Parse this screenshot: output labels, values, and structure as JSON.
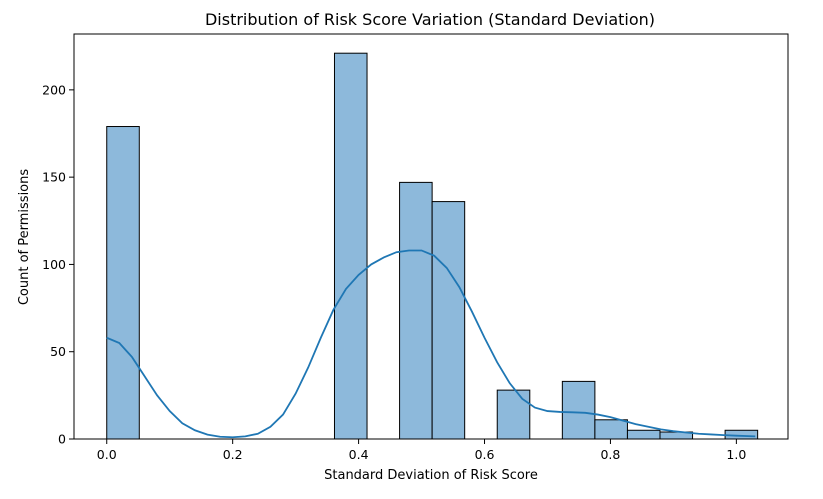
{
  "chart_data": {
    "type": "bar",
    "title": "Distribution of Risk Score Variation (Standard Deviation)",
    "xlabel": "Standard Deviation of Risk Score",
    "ylabel": "Count of Permissions",
    "xlim": [
      -0.052,
      1.082
    ],
    "ylim": [
      0,
      232
    ],
    "xticks": [
      0.0,
      0.2,
      0.4,
      0.6,
      0.8,
      1.0
    ],
    "xtick_labels": [
      "0.0",
      "0.2",
      "0.4",
      "0.6",
      "0.8",
      "1.0"
    ],
    "yticks": [
      0,
      50,
      100,
      150,
      200
    ],
    "ytick_labels": [
      "0",
      "50",
      "100",
      "150",
      "200"
    ],
    "bin_width": 0.0517,
    "bins": [
      {
        "x0": 0.0,
        "count": 179
      },
      {
        "x0": 0.3617,
        "count": 221
      },
      {
        "x0": 0.4651,
        "count": 147
      },
      {
        "x0": 0.5168,
        "count": 136
      },
      {
        "x0": 0.6202,
        "count": 28
      },
      {
        "x0": 0.7236,
        "count": 33
      },
      {
        "x0": 0.7753,
        "count": 11
      },
      {
        "x0": 0.827,
        "count": 5
      },
      {
        "x0": 0.8787,
        "count": 4
      },
      {
        "x0": 0.9821,
        "count": 5
      }
    ],
    "kde": {
      "x": [
        0.0,
        0.02,
        0.04,
        0.06,
        0.08,
        0.1,
        0.12,
        0.14,
        0.16,
        0.18,
        0.2,
        0.22,
        0.24,
        0.26,
        0.28,
        0.3,
        0.32,
        0.34,
        0.36,
        0.38,
        0.4,
        0.42,
        0.44,
        0.46,
        0.48,
        0.5,
        0.52,
        0.54,
        0.56,
        0.58,
        0.6,
        0.62,
        0.64,
        0.66,
        0.68,
        0.7,
        0.72,
        0.74,
        0.76,
        0.78,
        0.8,
        0.82,
        0.84,
        0.86,
        0.88,
        0.9,
        0.92,
        0.94,
        0.96,
        0.98,
        1.0,
        1.03
      ],
      "y": [
        58,
        55,
        47,
        36,
        25,
        16,
        9,
        5,
        2.5,
        1.3,
        1,
        1.5,
        3,
        7,
        14,
        26,
        41,
        58,
        74,
        86,
        94,
        100,
        104,
        107,
        108,
        108,
        105,
        98,
        87,
        73,
        58,
        44,
        32,
        23,
        18,
        16,
        15.5,
        15.3,
        15,
        14,
        12.5,
        10.5,
        8.5,
        7,
        5.5,
        4.5,
        3.7,
        3,
        2.6,
        2.2,
        1.9,
        1.5
      ]
    }
  }
}
